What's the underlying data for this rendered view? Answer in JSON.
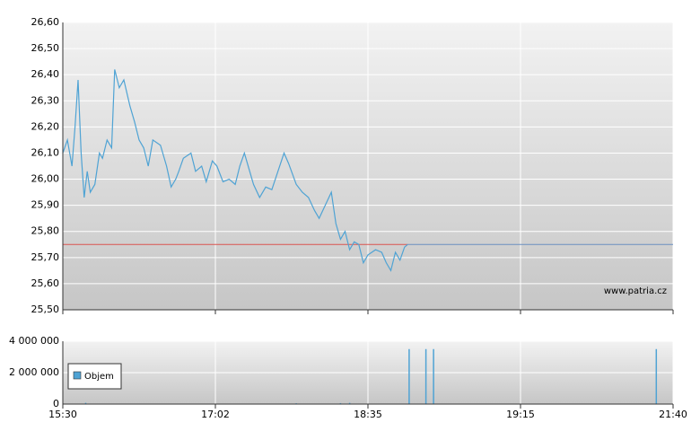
{
  "chart_data": [
    {
      "type": "line",
      "annotation": "www.patria.cz",
      "reference_line": 25.75,
      "reference_color": "#d9534f",
      "ylim": [
        25.5,
        26.6
      ],
      "yticks": [
        {
          "value": 25.5,
          "label": "25,50"
        },
        {
          "value": 25.6,
          "label": "25,60"
        },
        {
          "value": 25.7,
          "label": "25,70"
        },
        {
          "value": 25.8,
          "label": "25,80"
        },
        {
          "value": 25.9,
          "label": "25,90"
        },
        {
          "value": 26.0,
          "label": "26,00"
        },
        {
          "value": 26.1,
          "label": "26,10"
        },
        {
          "value": 26.2,
          "label": "26,20"
        },
        {
          "value": 26.3,
          "label": "26,30"
        },
        {
          "value": 26.4,
          "label": "26,40"
        },
        {
          "value": 26.5,
          "label": "26,50"
        },
        {
          "value": 26.6,
          "label": "26,60"
        }
      ],
      "grid": true,
      "series": [
        {
          "color": "#4fa3d4",
          "x": [
            0,
            0.03,
            0.06,
            0.08,
            0.1,
            0.12,
            0.14,
            0.16,
            0.18,
            0.21,
            0.24,
            0.26,
            0.29,
            0.32,
            0.34,
            0.37,
            0.4,
            0.44,
            0.47,
            0.5,
            0.53,
            0.56,
            0.59,
            0.64,
            0.68,
            0.71,
            0.74,
            0.76,
            0.79,
            0.84,
            0.87,
            0.91,
            0.94,
            0.98,
            1.01,
            1.05,
            1.09,
            1.13,
            1.16,
            1.19,
            1.22,
            1.25,
            1.29,
            1.33,
            1.37,
            1.41,
            1.45,
            1.48,
            1.53,
            1.57,
            1.61,
            1.65,
            1.68,
            1.72,
            1.76,
            1.79,
            1.82,
            1.85,
            1.88,
            1.91,
            1.94,
            1.97,
            2,
            2.05,
            2.09,
            2.12,
            2.15,
            2.18,
            2.21,
            2.24,
            2.26
          ],
          "values": [
            26.1,
            26.15,
            26.05,
            26.2,
            26.38,
            26.1,
            25.93,
            26.03,
            25.95,
            25.98,
            26.1,
            26.08,
            26.15,
            26.12,
            26.42,
            26.35,
            26.38,
            26.28,
            26.22,
            26.15,
            26.12,
            26.05,
            26.15,
            26.13,
            26.05,
            25.97,
            26.0,
            26.03,
            26.08,
            26.1,
            26.03,
            26.05,
            25.99,
            26.07,
            26.05,
            25.99,
            26.0,
            25.98,
            26.05,
            26.1,
            26.04,
            25.98,
            25.93,
            25.97,
            25.96,
            26.03,
            26.1,
            26.06,
            25.98,
            25.95,
            25.93,
            25.88,
            25.85,
            25.9,
            25.95,
            25.83,
            25.77,
            25.8,
            25.73,
            25.76,
            25.75,
            25.68,
            25.71,
            25.73,
            25.72,
            25.68,
            25.65,
            25.72,
            25.69,
            25.74,
            25.75
          ]
        }
      ]
    },
    {
      "type": "bar",
      "xlim": [
        0,
        4
      ],
      "xticks": [
        {
          "value": 0,
          "label": "15:30"
        },
        {
          "value": 1,
          "label": "17:02"
        },
        {
          "value": 2,
          "label": "18:35"
        },
        {
          "value": 3,
          "label": "19:15"
        },
        {
          "value": 4,
          "label": "21:40"
        }
      ],
      "ylim": [
        0,
        4000000
      ],
      "yticks": [
        {
          "value": 0,
          "label": "0"
        },
        {
          "value": 2000000,
          "label": "2 000 000"
        },
        {
          "value": 4000000,
          "label": "4 000 000"
        }
      ],
      "grid": true,
      "series": [
        {
          "name": "Objem",
          "color": "#4fa3d4",
          "x": [
            0.15,
            1.53,
            1.82,
            1.88,
            2.27,
            2.38,
            2.43,
            3.89
          ],
          "values": [
            80000,
            50000,
            60000,
            80000,
            3500000,
            3500000,
            3500000,
            3500000
          ]
        }
      ]
    }
  ]
}
